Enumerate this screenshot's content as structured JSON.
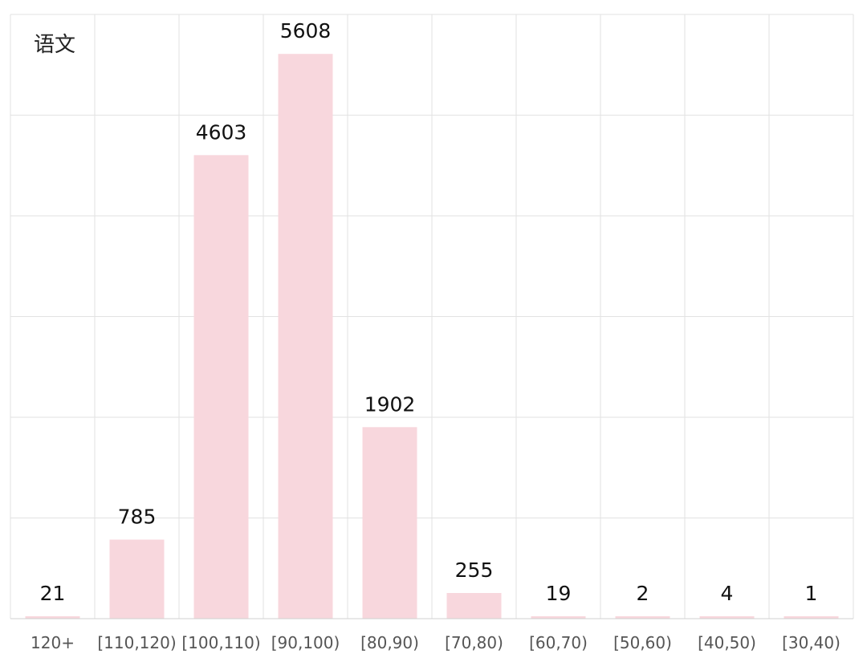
{
  "chart_data": {
    "type": "bar",
    "title": "语文",
    "categories": [
      "120+",
      "[110,120)",
      "[100,110)",
      "[90,100)",
      "[80,90)",
      "[70,80)",
      "[60,70)",
      "[50,60)",
      "[40,50)",
      "[30,40)"
    ],
    "values": [
      21,
      785,
      4603,
      5608,
      1902,
      255,
      19,
      2,
      4,
      1
    ],
    "ylim": [
      0,
      6000
    ],
    "grid": true,
    "bar_color": "#f8d7dd",
    "grid_color": "#e2e2e2"
  }
}
